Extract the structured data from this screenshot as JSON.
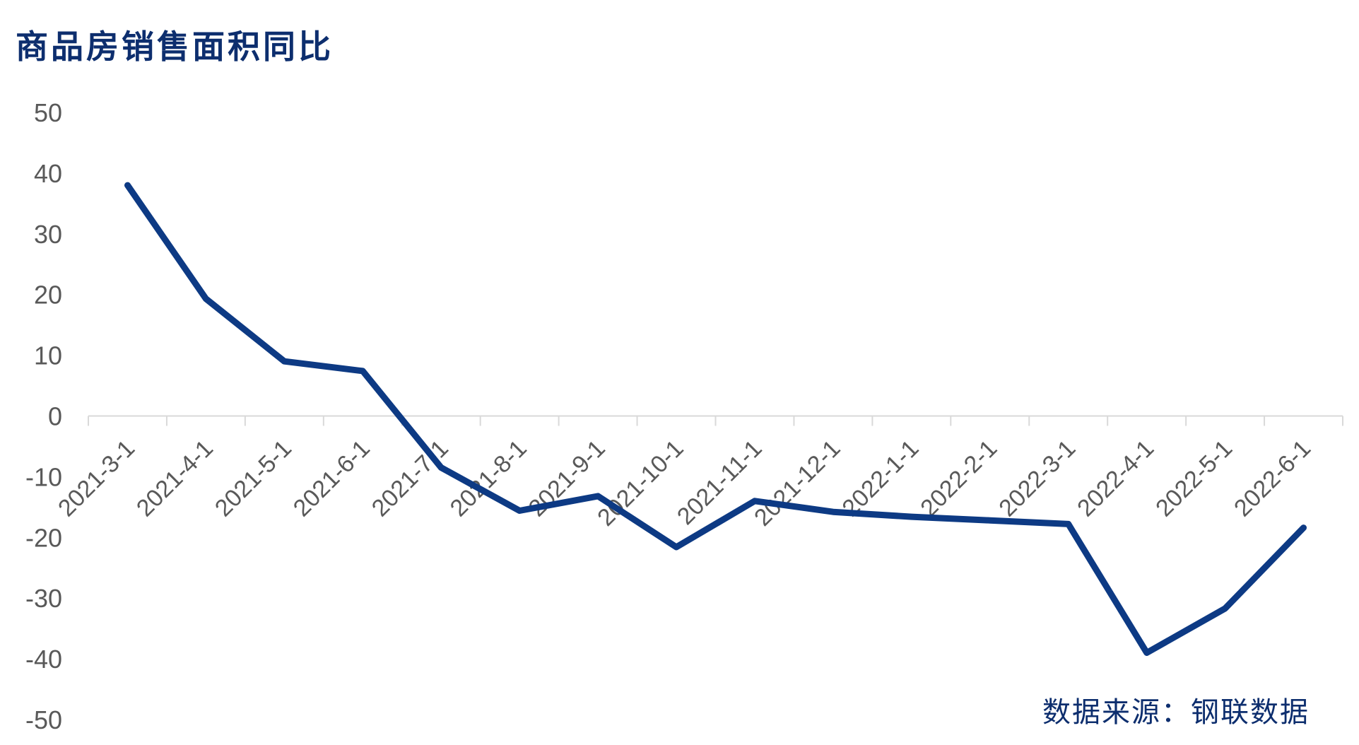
{
  "title": "商品房销售面积同比",
  "source": "数据来源：钢联数据",
  "chart_data": {
    "type": "line",
    "title": "商品房销售面积同比",
    "xlabel": "",
    "ylabel": "",
    "ylim": [
      -50,
      50
    ],
    "yticks": [
      50,
      40,
      30,
      20,
      10,
      0,
      -10,
      -20,
      -30,
      -40,
      -50
    ],
    "categories": [
      "2021-3-1",
      "2021-4-1",
      "2021-5-1",
      "2021-6-1",
      "2021-7-1",
      "2021-8-1",
      "2021-9-1",
      "2021-10-1",
      "2021-11-1",
      "2021-12-1",
      "2022-1-1",
      "2022-2-1",
      "2022-3-1",
      "2022-4-1",
      "2022-5-1",
      "2022-6-1"
    ],
    "series": [
      {
        "values": [
          38.0,
          19.3,
          9.0,
          7.4,
          -8.5,
          -15.6,
          -13.2,
          -21.6,
          -14.0,
          -15.8,
          -16.6,
          -17.2,
          -17.8,
          -39.0,
          -31.7,
          -18.4
        ],
        "color": "#0d3a84"
      }
    ],
    "grid": false,
    "legend": "none",
    "colors": {
      "line": "#0d3a84",
      "axis": "#d9d9d9",
      "tick_text": "#595959",
      "title": "#0d2e6e"
    }
  }
}
